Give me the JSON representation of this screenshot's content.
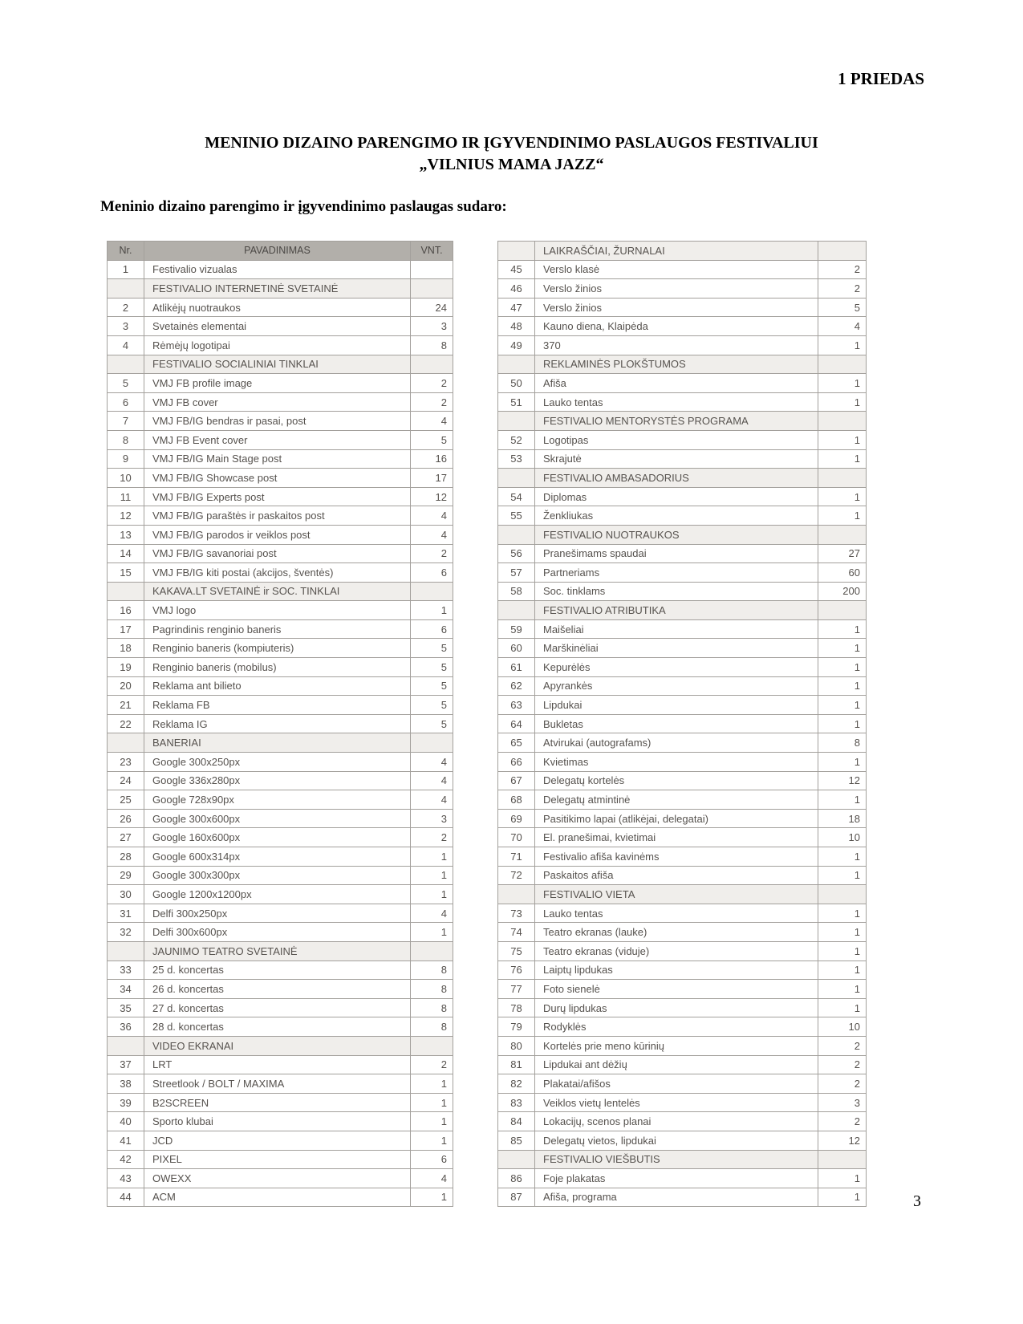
{
  "page": {
    "corner_label": "1 PRIEDAS",
    "title_line1": "MENINIO DIZAINO PARENGIMO IR ĮGYVENDINIMO PASLAUGOS FESTIVALIUI",
    "title_line2": "„VILNIUS MAMA JAZZ“",
    "intro": "Meninio dizaino parengimo ir įgyvendinimo paslaugas sudaro:",
    "page_number": "3"
  },
  "colors": {
    "header_bg": "#b2afaa",
    "section_bg": "#f0eeeb",
    "border": "#a3a09c",
    "table_text": "#56524e"
  },
  "tables": {
    "headers": {
      "nr": "Nr.",
      "name": "PAVADINIMAS",
      "qty": "VNT."
    },
    "left_rows": [
      {
        "nr": "1",
        "name": "Festivalio vizualas",
        "qty": ""
      },
      {
        "section": true,
        "name": "FESTIVALIO INTERNETINĖ SVETAINĖ"
      },
      {
        "nr": "2",
        "name": "Atlikėjų nuotraukos",
        "qty": "24"
      },
      {
        "nr": "3",
        "name": "Svetainės elementai",
        "qty": "3"
      },
      {
        "nr": "4",
        "name": "Rėmėjų logotipai",
        "qty": "8"
      },
      {
        "section": true,
        "name": "FESTIVALIO SOCIALINIAI TINKLAI"
      },
      {
        "nr": "5",
        "name": "VMJ FB profile image",
        "qty": "2"
      },
      {
        "nr": "6",
        "name": "VMJ FB cover",
        "qty": "2"
      },
      {
        "nr": "7",
        "name": "VMJ FB/IG bendras ir pasai, post",
        "qty": "4"
      },
      {
        "nr": "8",
        "name": "VMJ FB Event cover",
        "qty": "5"
      },
      {
        "nr": "9",
        "name": "VMJ FB/IG Main Stage post",
        "qty": "16"
      },
      {
        "nr": "10",
        "name": "VMJ FB/IG Showcase post",
        "qty": "17"
      },
      {
        "nr": "11",
        "name": "VMJ FB/IG Experts post",
        "qty": "12"
      },
      {
        "nr": "12",
        "name": "VMJ FB/IG paraštės ir paskaitos post",
        "qty": "4"
      },
      {
        "nr": "13",
        "name": "VMJ FB/IG parodos ir veiklos post",
        "qty": "4"
      },
      {
        "nr": "14",
        "name": "VMJ FB/IG savanoriai post",
        "qty": "2"
      },
      {
        "nr": "15",
        "name": "VMJ FB/IG kiti postai (akcijos, šventės)",
        "qty": "6"
      },
      {
        "section": true,
        "name": "KAKAVA.LT SVETAINĖ ir SOC. TINKLAI"
      },
      {
        "nr": "16",
        "name": "VMJ logo",
        "qty": "1"
      },
      {
        "nr": "17",
        "name": "Pagrindinis renginio baneris",
        "qty": "6"
      },
      {
        "nr": "18",
        "name": "Renginio baneris (kompiuteris)",
        "qty": "5"
      },
      {
        "nr": "19",
        "name": "Renginio baneris (mobilus)",
        "qty": "5"
      },
      {
        "nr": "20",
        "name": "Reklama ant bilieto",
        "qty": "5"
      },
      {
        "nr": "21",
        "name": "Reklama FB",
        "qty": "5"
      },
      {
        "nr": "22",
        "name": "Reklama IG",
        "qty": "5"
      },
      {
        "section": true,
        "name": "BANERIAI"
      },
      {
        "nr": "23",
        "name": "Google 300x250px",
        "qty": "4"
      },
      {
        "nr": "24",
        "name": "Google 336x280px",
        "qty": "4"
      },
      {
        "nr": "25",
        "name": "Google 728x90px",
        "qty": "4"
      },
      {
        "nr": "26",
        "name": "Google 300x600px",
        "qty": "3"
      },
      {
        "nr": "27",
        "name": "Google 160x600px",
        "qty": "2"
      },
      {
        "nr": "28",
        "name": "Google 600x314px",
        "qty": "1"
      },
      {
        "nr": "29",
        "name": "Google 300x300px",
        "qty": "1"
      },
      {
        "nr": "30",
        "name": "Google 1200x1200px",
        "qty": "1"
      },
      {
        "nr": "31",
        "name": "Delfi 300x250px",
        "qty": "4"
      },
      {
        "nr": "32",
        "name": "Delfi 300x600px",
        "qty": "1"
      },
      {
        "section": true,
        "name": "JAUNIMO TEATRO SVETAINĖ"
      },
      {
        "nr": "33",
        "name": "25 d. koncertas",
        "qty": "8"
      },
      {
        "nr": "34",
        "name": "26 d. koncertas",
        "qty": "8"
      },
      {
        "nr": "35",
        "name": "27 d. koncertas",
        "qty": "8"
      },
      {
        "nr": "36",
        "name": "28 d. koncertas",
        "qty": "8"
      },
      {
        "section": true,
        "name": "VIDEO EKRANAI"
      },
      {
        "nr": "37",
        "name": "LRT",
        "qty": "2"
      },
      {
        "nr": "38",
        "name": "Streetlook / BOLT / MAXIMA",
        "qty": "1"
      },
      {
        "nr": "39",
        "name": "B2SCREEN",
        "qty": "1"
      },
      {
        "nr": "40",
        "name": "Sporto klubai",
        "qty": "1"
      },
      {
        "nr": "41",
        "name": "JCD",
        "qty": "1"
      },
      {
        "nr": "42",
        "name": "PIXEL",
        "qty": "6"
      },
      {
        "nr": "43",
        "name": "OWEXX",
        "qty": "4"
      },
      {
        "nr": "44",
        "name": "ACM",
        "qty": "1"
      }
    ],
    "right_rows": [
      {
        "section": true,
        "name": "LAIKRAŠČIAI, ŽURNALAI"
      },
      {
        "nr": "45",
        "name": "Verslo klasė",
        "qty": "2"
      },
      {
        "nr": "46",
        "name": "Verslo žinios",
        "qty": "2"
      },
      {
        "nr": "47",
        "name": "Verslo žinios",
        "qty": "5"
      },
      {
        "nr": "48",
        "name": "Kauno diena, Klaipėda",
        "qty": "4"
      },
      {
        "nr": "49",
        "name": "370",
        "qty": "1"
      },
      {
        "section": true,
        "name": "REKLAMINĖS PLOKŠTUMOS"
      },
      {
        "nr": "50",
        "name": "Afiša",
        "qty": "1"
      },
      {
        "nr": "51",
        "name": "Lauko tentas",
        "qty": "1"
      },
      {
        "section": true,
        "name": "FESTIVALIO MENTORYSTĖS PROGRAMA"
      },
      {
        "nr": "52",
        "name": "Logotipas",
        "qty": "1"
      },
      {
        "nr": "53",
        "name": "Skrajutė",
        "qty": "1"
      },
      {
        "section": true,
        "name": "FESTIVALIO AMBASADORIUS"
      },
      {
        "nr": "54",
        "name": "Diplomas",
        "qty": "1"
      },
      {
        "nr": "55",
        "name": "Ženkliukas",
        "qty": "1"
      },
      {
        "section": true,
        "name": "FESTIVALIO NUOTRAUKOS"
      },
      {
        "nr": "56",
        "name": "Pranešimams spaudai",
        "qty": "27"
      },
      {
        "nr": "57",
        "name": "Partneriams",
        "qty": "60"
      },
      {
        "nr": "58",
        "name": "Soc. tinklams",
        "qty": "200"
      },
      {
        "section": true,
        "name": "FESTIVALIO ATRIBUTIKA"
      },
      {
        "nr": "59",
        "name": "Maišeliai",
        "qty": "1"
      },
      {
        "nr": "60",
        "name": "Marškinėliai",
        "qty": "1"
      },
      {
        "nr": "61",
        "name": "Kepurėlės",
        "qty": "1"
      },
      {
        "nr": "62",
        "name": "Apyrankės",
        "qty": "1"
      },
      {
        "nr": "63",
        "name": "Lipdukai",
        "qty": "1"
      },
      {
        "nr": "64",
        "name": "Bukletas",
        "qty": "1"
      },
      {
        "nr": "65",
        "name": "Atvirukai (autografams)",
        "qty": "8"
      },
      {
        "nr": "66",
        "name": "Kvietimas",
        "qty": "1"
      },
      {
        "nr": "67",
        "name": "Delegatų kortelės",
        "qty": "12"
      },
      {
        "nr": "68",
        "name": "Delegatų atmintinė",
        "qty": "1"
      },
      {
        "nr": "69",
        "name": "Pasitikimo lapai (atlikėjai, delegatai)",
        "qty": "18"
      },
      {
        "nr": "70",
        "name": "El. pranešimai, kvietimai",
        "qty": "10"
      },
      {
        "nr": "71",
        "name": "Festivalio afiša kavinėms",
        "qty": "1"
      },
      {
        "nr": "72",
        "name": "Paskaitos afiša",
        "qty": "1"
      },
      {
        "section": true,
        "name": "FESTIVALIO VIETA"
      },
      {
        "nr": "73",
        "name": "Lauko tentas",
        "qty": "1"
      },
      {
        "nr": "74",
        "name": "Teatro ekranas (lauke)",
        "qty": "1"
      },
      {
        "nr": "75",
        "name": "Teatro ekranas (viduje)",
        "qty": "1"
      },
      {
        "nr": "76",
        "name": "Laiptų lipdukas",
        "qty": "1"
      },
      {
        "nr": "77",
        "name": "Foto sienelė",
        "qty": "1"
      },
      {
        "nr": "78",
        "name": "Durų lipdukas",
        "qty": "1"
      },
      {
        "nr": "79",
        "name": "Rodyklės",
        "qty": "10"
      },
      {
        "nr": "80",
        "name": "Kortelės prie meno kūrinių",
        "qty": "2"
      },
      {
        "nr": "81",
        "name": "Lipdukai ant dėžių",
        "qty": "2"
      },
      {
        "nr": "82",
        "name": "Plakatai/afišos",
        "qty": "2"
      },
      {
        "nr": "83",
        "name": "Veiklos vietų lentelės",
        "qty": "3"
      },
      {
        "nr": "84",
        "name": "Lokacijų, scenos planai",
        "qty": "2"
      },
      {
        "nr": "85",
        "name": "Delegatų vietos, lipdukai",
        "qty": "12"
      },
      {
        "section": true,
        "name": "FESTIVALIO VIEŠBUTIS"
      },
      {
        "nr": "86",
        "name": "Foje plakatas",
        "qty": "1"
      },
      {
        "nr": "87",
        "name": "Afiša, programa",
        "qty": "1"
      }
    ]
  }
}
